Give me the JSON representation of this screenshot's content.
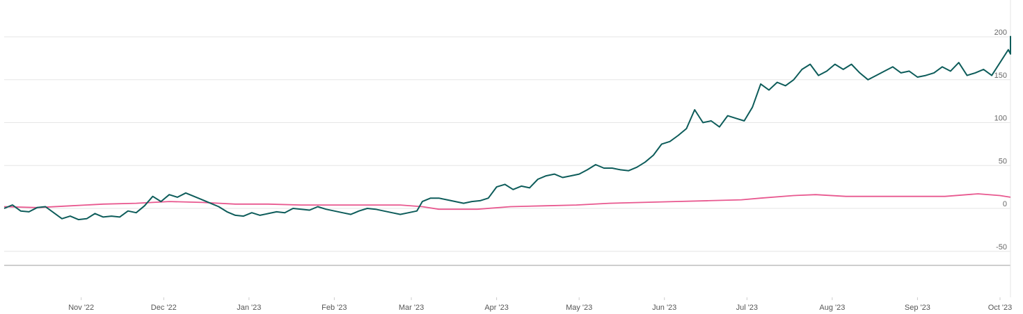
{
  "chart_data": {
    "type": "line",
    "title": "",
    "xlabel": "",
    "ylabel": "",
    "ylim": [
      -50,
      200
    ],
    "y_ticks": [
      "200",
      "150",
      "100",
      "50",
      "0",
      "-50"
    ],
    "x_ticks": [
      "Nov '22",
      "Dec '22",
      "Jan '23",
      "Feb '23",
      "Mar '23",
      "Apr '23",
      "May '23",
      "Jun '23",
      "Jul '23",
      "Aug '23",
      "Sep '23",
      "Oct '23"
    ],
    "x_tick_dates": [
      "2022-11-01",
      "2022-12-01",
      "2023-01-01",
      "2023-02-01",
      "2023-03-01",
      "2023-04-01",
      "2023-05-01",
      "2023-06-01",
      "2023-07-01",
      "2023-08-01",
      "2023-09-01",
      "2023-10-01"
    ],
    "x_range": [
      "2022-10-04",
      "2023-10-04"
    ],
    "grid": true,
    "legend": "none",
    "series": [
      {
        "color": "#0d5c5a",
        "points": [
          [
            "2022-10-04",
            0
          ],
          [
            "2022-10-07",
            4
          ],
          [
            "2022-10-10",
            -3
          ],
          [
            "2022-10-13",
            -4
          ],
          [
            "2022-10-16",
            1
          ],
          [
            "2022-10-19",
            2
          ],
          [
            "2022-10-22",
            -5
          ],
          [
            "2022-10-25",
            -12
          ],
          [
            "2022-10-28",
            -9
          ],
          [
            "2022-10-31",
            -13
          ],
          [
            "2022-11-03",
            -12
          ],
          [
            "2022-11-06",
            -6
          ],
          [
            "2022-11-09",
            -10
          ],
          [
            "2022-11-12",
            -9
          ],
          [
            "2022-11-15",
            -10
          ],
          [
            "2022-11-18",
            -3
          ],
          [
            "2022-11-21",
            -5
          ],
          [
            "2022-11-24",
            3
          ],
          [
            "2022-11-27",
            14
          ],
          [
            "2022-11-30",
            8
          ],
          [
            "2022-12-03",
            16
          ],
          [
            "2022-12-06",
            13
          ],
          [
            "2022-12-09",
            18
          ],
          [
            "2022-12-12",
            14
          ],
          [
            "2022-12-15",
            10
          ],
          [
            "2022-12-18",
            6
          ],
          [
            "2022-12-21",
            2
          ],
          [
            "2022-12-24",
            -4
          ],
          [
            "2022-12-27",
            -8
          ],
          [
            "2022-12-30",
            -9
          ],
          [
            "2023-01-02",
            -5
          ],
          [
            "2023-01-05",
            -8
          ],
          [
            "2023-01-08",
            -6
          ],
          [
            "2023-01-11",
            -4
          ],
          [
            "2023-01-14",
            -5
          ],
          [
            "2023-01-17",
            0
          ],
          [
            "2023-01-20",
            -1
          ],
          [
            "2023-01-23",
            -2
          ],
          [
            "2023-01-26",
            2
          ],
          [
            "2023-01-29",
            -1
          ],
          [
            "2023-02-01",
            -3
          ],
          [
            "2023-02-04",
            -5
          ],
          [
            "2023-02-07",
            -7
          ],
          [
            "2023-02-10",
            -3
          ],
          [
            "2023-02-13",
            0
          ],
          [
            "2023-02-16",
            -1
          ],
          [
            "2023-02-19",
            -3
          ],
          [
            "2023-02-22",
            -5
          ],
          [
            "2023-02-25",
            -7
          ],
          [
            "2023-02-28",
            -5
          ],
          [
            "2023-03-03",
            -3
          ],
          [
            "2023-03-05",
            8
          ],
          [
            "2023-03-08",
            12
          ],
          [
            "2023-03-11",
            12
          ],
          [
            "2023-03-14",
            10
          ],
          [
            "2023-03-17",
            8
          ],
          [
            "2023-03-20",
            6
          ],
          [
            "2023-03-23",
            8
          ],
          [
            "2023-03-26",
            9
          ],
          [
            "2023-03-29",
            12
          ],
          [
            "2023-04-01",
            25
          ],
          [
            "2023-04-04",
            28
          ],
          [
            "2023-04-07",
            22
          ],
          [
            "2023-04-10",
            26
          ],
          [
            "2023-04-13",
            24
          ],
          [
            "2023-04-16",
            34
          ],
          [
            "2023-04-19",
            38
          ],
          [
            "2023-04-22",
            40
          ],
          [
            "2023-04-25",
            36
          ],
          [
            "2023-04-28",
            38
          ],
          [
            "2023-05-01",
            40
          ],
          [
            "2023-05-04",
            45
          ],
          [
            "2023-05-07",
            51
          ],
          [
            "2023-05-10",
            47
          ],
          [
            "2023-05-13",
            47
          ],
          [
            "2023-05-16",
            45
          ],
          [
            "2023-05-19",
            44
          ],
          [
            "2023-05-22",
            48
          ],
          [
            "2023-05-25",
            54
          ],
          [
            "2023-05-28",
            62
          ],
          [
            "2023-05-31",
            75
          ],
          [
            "2023-06-03",
            78
          ],
          [
            "2023-06-06",
            85
          ],
          [
            "2023-06-09",
            93
          ],
          [
            "2023-06-12",
            115
          ],
          [
            "2023-06-15",
            100
          ],
          [
            "2023-06-18",
            102
          ],
          [
            "2023-06-21",
            95
          ],
          [
            "2023-06-24",
            108
          ],
          [
            "2023-06-27",
            105
          ],
          [
            "2023-06-30",
            102
          ],
          [
            "2023-07-03",
            118
          ],
          [
            "2023-07-06",
            145
          ],
          [
            "2023-07-09",
            138
          ],
          [
            "2023-07-12",
            147
          ],
          [
            "2023-07-15",
            143
          ],
          [
            "2023-07-18",
            150
          ],
          [
            "2023-07-21",
            162
          ],
          [
            "2023-07-24",
            168
          ],
          [
            "2023-07-27",
            155
          ],
          [
            "2023-07-30",
            160
          ],
          [
            "2023-08-02",
            168
          ],
          [
            "2023-08-05",
            162
          ],
          [
            "2023-08-08",
            168
          ],
          [
            "2023-08-11",
            158
          ],
          [
            "2023-08-14",
            150
          ],
          [
            "2023-08-17",
            155
          ],
          [
            "2023-08-20",
            160
          ],
          [
            "2023-08-23",
            165
          ],
          [
            "2023-08-26",
            158
          ],
          [
            "2023-08-29",
            160
          ],
          [
            "2023-09-01",
            153
          ],
          [
            "2023-09-04",
            155
          ],
          [
            "2023-09-07",
            158
          ],
          [
            "2023-09-10",
            165
          ],
          [
            "2023-09-13",
            160
          ],
          [
            "2023-09-16",
            170
          ],
          [
            "2023-09-19",
            155
          ],
          [
            "2023-09-22",
            158
          ],
          [
            "2023-09-25",
            162
          ],
          [
            "2023-09-28",
            155
          ],
          [
            "2023-10-01",
            170
          ],
          [
            "2023-10-04",
            185
          ],
          [
            "2023-10-07",
            180
          ],
          [
            "2023-10-10",
            193
          ],
          [
            "2023-10-13",
            201
          ]
        ]
      },
      {
        "color": "#e8588f",
        "points": [
          [
            "2022-10-04",
            2
          ],
          [
            "2022-10-16",
            1
          ],
          [
            "2022-10-28",
            3
          ],
          [
            "2022-11-09",
            5
          ],
          [
            "2022-11-21",
            6
          ],
          [
            "2022-12-03",
            8
          ],
          [
            "2022-12-15",
            7
          ],
          [
            "2022-12-27",
            5
          ],
          [
            "2023-01-08",
            5
          ],
          [
            "2023-01-20",
            4
          ],
          [
            "2023-02-01",
            4
          ],
          [
            "2023-02-13",
            4
          ],
          [
            "2023-02-25",
            4
          ],
          [
            "2023-03-05",
            2
          ],
          [
            "2023-03-11",
            -1
          ],
          [
            "2023-03-25",
            -1
          ],
          [
            "2023-04-06",
            2
          ],
          [
            "2023-04-18",
            3
          ],
          [
            "2023-04-30",
            4
          ],
          [
            "2023-05-12",
            6
          ],
          [
            "2023-05-24",
            7
          ],
          [
            "2023-06-05",
            8
          ],
          [
            "2023-06-17",
            9
          ],
          [
            "2023-06-29",
            10
          ],
          [
            "2023-07-06",
            12
          ],
          [
            "2023-07-18",
            15
          ],
          [
            "2023-07-26",
            16
          ],
          [
            "2023-08-06",
            14
          ],
          [
            "2023-08-18",
            14
          ],
          [
            "2023-08-30",
            14
          ],
          [
            "2023-09-11",
            14
          ],
          [
            "2023-09-23",
            17
          ],
          [
            "2023-10-01",
            15
          ],
          [
            "2023-10-13",
            13
          ]
        ]
      }
    ]
  }
}
